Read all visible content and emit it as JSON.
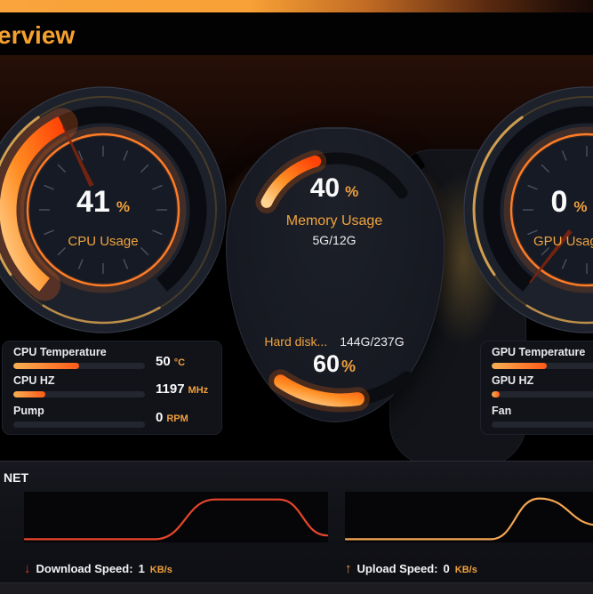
{
  "window": {
    "title": "erview"
  },
  "gauges": {
    "cpu": {
      "value": "41",
      "unit": "%",
      "label": "CPU Usage",
      "percent": 41
    },
    "gpu": {
      "value": "0",
      "unit": "%",
      "label": "GPU Usage",
      "percent": 0
    },
    "memory": {
      "value": "40",
      "unit": "%",
      "label": "Memory Usage",
      "detail": "5G/12G",
      "percent": 40
    },
    "disk": {
      "label": "Hard disk...",
      "detail": "144G/237G",
      "value": "60",
      "unit": "%",
      "percent": 60
    }
  },
  "stats": {
    "left": [
      {
        "label": "CPU Temperature",
        "value": "50",
        "unit": "°C",
        "percent": 50
      },
      {
        "label": "CPU HZ",
        "value": "1197",
        "unit": "MHz",
        "percent": 24
      },
      {
        "label": "Pump",
        "value": "0",
        "unit": "RPM",
        "percent": 0
      }
    ],
    "right": [
      {
        "label": "GPU Temperature",
        "percent": 42
      },
      {
        "label": "GPU HZ",
        "percent": 6
      },
      {
        "label": "Fan",
        "percent": 0
      }
    ]
  },
  "net": {
    "title": "NET",
    "download": {
      "arrow": "↓",
      "label": "Download Speed:",
      "value": "1",
      "unit": "KB/s",
      "points": [
        [
          0,
          0.05
        ],
        [
          0.43,
          0.05
        ],
        [
          0.63,
          0.91
        ],
        [
          0.84,
          0.91
        ],
        [
          1,
          0.13
        ]
      ]
    },
    "upload": {
      "arrow": "↑",
      "label": "Upload Speed:",
      "value": "0",
      "unit": "KB/s",
      "points": [
        [
          0,
          0.05
        ],
        [
          0.48,
          0.05
        ],
        [
          0.64,
          0.93
        ],
        [
          0.84,
          0.35
        ],
        [
          1,
          0.35
        ]
      ]
    }
  },
  "colors": {
    "accent_orange": "#f2a43e",
    "title_orange": "#f6a12e",
    "progress_light": "#ffd391",
    "progress_mid": "#ff8d22",
    "progress_deep": "#ff4206",
    "download_line": "#e8462a",
    "upload_line": "#f3a653",
    "needle": "#7e2410",
    "gold_ring": "#d9a351",
    "track": "#0a0c11",
    "gauge_face": "#151a24",
    "gauge_circle": "#1d212b"
  }
}
